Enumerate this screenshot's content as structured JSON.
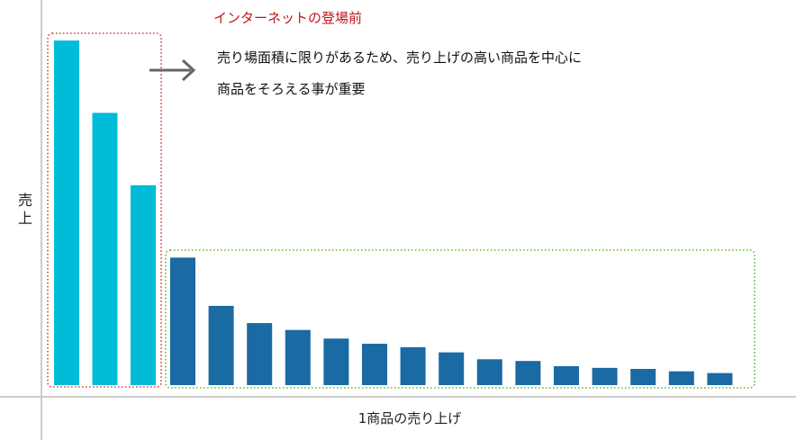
{
  "chart_data": {
    "type": "bar",
    "ylabel": "売上",
    "xlabel": "1商品の売り上げ",
    "ylim": [
      0,
      100
    ],
    "grid": false,
    "legend": "none",
    "colors": {
      "head": "#00bcd9",
      "tail": "#1a6aa3",
      "head_box": "#d43a3a",
      "tail_box": "#5cb82e",
      "callout_title": "#c0171c",
      "arrow": "#666666",
      "axis": "#cccccc"
    },
    "series": [
      {
        "values": [
          100,
          79,
          58
        ]
      },
      {
        "values": [
          37,
          23,
          18,
          16,
          13.5,
          12,
          11,
          9.5,
          7.5,
          7,
          5.5,
          5,
          4.7,
          4,
          3.5
        ]
      }
    ],
    "annotations": {
      "title": "インターネットの登場前",
      "line1": "売り場面積に限りがあるため、売り上げの高い商品を中心に",
      "line2": "商品をそろえる事が重要"
    }
  }
}
